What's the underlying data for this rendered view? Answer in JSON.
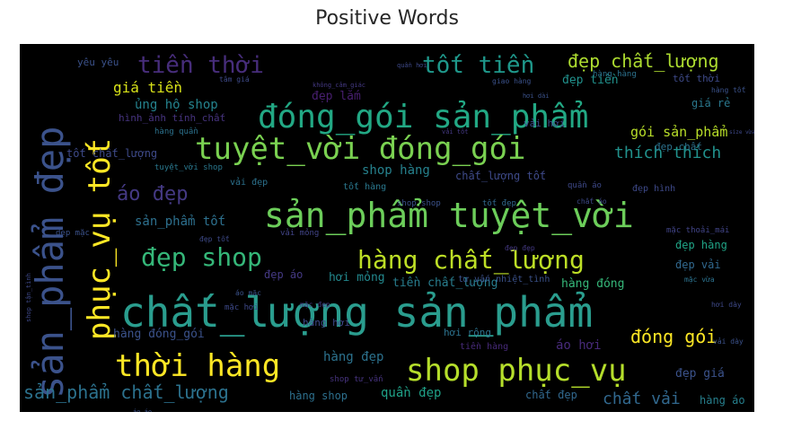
{
  "chart_data": {
    "type": "wordcloud",
    "title": "Positive Words",
    "background": "#000000",
    "palette": "viridis",
    "words": [
      {
        "text": "chất_lượng sản_phẩm",
        "weight": 1.0,
        "color": "#2a9d8e"
      },
      {
        "text": "sản_phẩm tuyệt_vời",
        "weight": 0.82,
        "color": "#6ccd5a"
      },
      {
        "text": "đóng_gói sản_phẩm",
        "weight": 0.76,
        "color": "#22a884"
      },
      {
        "text": "tuyệt_vời đóng_gói",
        "weight": 0.74,
        "color": "#7ad151"
      },
      {
        "text": "sản_phẩm đẹp",
        "weight": 0.7,
        "color": "#3b528b"
      },
      {
        "text": "shop phục_vụ",
        "weight": 0.66,
        "color": "#b5de2b"
      },
      {
        "text": "phục_vụ tốt",
        "weight": 0.64,
        "color": "#fde725"
      },
      {
        "text": "thời hàng",
        "weight": 0.62,
        "color": "#fde725"
      },
      {
        "text": "hàng chất_lượng",
        "weight": 0.55,
        "color": "#bddf26"
      },
      {
        "text": "đẹp shop",
        "weight": 0.52,
        "color": "#35b779"
      },
      {
        "text": "tốt tiền",
        "weight": 0.46,
        "color": "#1f988b"
      },
      {
        "text": "tiền thời",
        "weight": 0.43,
        "color": "#472d7b"
      },
      {
        "text": "đẹp chất_lượng",
        "weight": 0.38,
        "color": "#addc30"
      },
      {
        "text": "sản_phẩm chất_lượng",
        "weight": 0.37,
        "color": "#2c728e"
      },
      {
        "text": "áo đẹp",
        "weight": 0.36,
        "color": "#443983"
      },
      {
        "text": "đóng gói",
        "weight": 0.32,
        "color": "#fde725"
      },
      {
        "text": "thích thích",
        "weight": 0.3,
        "color": "#21918c"
      },
      {
        "text": "chất vải",
        "weight": 0.29,
        "color": "#31688e"
      },
      {
        "text": "giá tiền",
        "weight": 0.27,
        "color": "#d8e219"
      },
      {
        "text": "gói sản_phẩm",
        "weight": 0.25,
        "color": "#b8de29"
      },
      {
        "text": "ủng hộ shop",
        "weight": 0.24,
        "color": "#25838e"
      },
      {
        "text": "hàng đóng_gói",
        "weight": 0.23,
        "color": "#3b528b"
      },
      {
        "text": "sản_phẩm tốt",
        "weight": 0.22,
        "color": "#2d708e"
      },
      {
        "text": "tiền chất_lượng",
        "weight": 0.21,
        "color": "#287d8e"
      },
      {
        "text": "shop hàng",
        "weight": 0.21,
        "color": "#26828e"
      },
      {
        "text": "hàng đẹp",
        "weight": 0.2,
        "color": "#2c728e"
      },
      {
        "text": "quần đẹp",
        "weight": 0.2,
        "color": "#1fa187"
      },
      {
        "text": "hơi mỏng",
        "weight": 0.2,
        "color": "#23898e"
      },
      {
        "text": "tốt chất_lượng",
        "weight": 0.19,
        "color": "#3e4a89"
      },
      {
        "text": "hình_ảnh tính_chất",
        "weight": 0.19,
        "color": "#46337e"
      },
      {
        "text": "đẹp tiền",
        "weight": 0.18,
        "color": "#21918c"
      },
      {
        "text": "giá rẻ",
        "weight": 0.18,
        "color": "#2a788e"
      },
      {
        "text": "vải hơi",
        "weight": 0.17,
        "color": "#3e4989"
      },
      {
        "text": "đẹp chất",
        "weight": 0.16,
        "color": "#2c728e"
      },
      {
        "text": "áo hơi",
        "weight": 0.16,
        "color": "#472a7a"
      },
      {
        "text": "hàng đóng",
        "weight": 0.16,
        "color": "#35b779"
      },
      {
        "text": "hàng shop",
        "weight": 0.16,
        "color": "#2d708e"
      },
      {
        "text": "đẹp hàng",
        "weight": 0.15,
        "color": "#20a486"
      },
      {
        "text": "đẹp vải",
        "weight": 0.15,
        "color": "#31688e"
      },
      {
        "text": "đẹp giá",
        "weight": 0.15,
        "color": "#3b528b"
      },
      {
        "text": "chất đẹp",
        "weight": 0.14,
        "color": "#31688e"
      },
      {
        "text": "hàng áo",
        "weight": 0.14,
        "color": "#27808e"
      },
      {
        "text": "chất_lượng tốt",
        "weight": 0.14,
        "color": "#3e4a89"
      },
      {
        "text": "tốt hàng",
        "weight": 0.13,
        "color": "#2a788e"
      },
      {
        "text": "đẹp lắm",
        "weight": 0.13,
        "color": "#481f70"
      },
      {
        "text": "hàng hơi",
        "weight": 0.13,
        "color": "#3e4989"
      },
      {
        "text": "đẹp áo",
        "weight": 0.13,
        "color": "#443983"
      },
      {
        "text": "vải đẹp",
        "weight": 0.12,
        "color": "#2c728e"
      },
      {
        "text": "yêu yêu",
        "weight": 0.12,
        "color": "#3b528b"
      },
      {
        "text": "tốt thời",
        "weight": 0.12,
        "color": "#3e4a89"
      },
      {
        "text": "đẹp hình",
        "weight": 0.11,
        "color": "#3e4989"
      },
      {
        "text": "hàng quần",
        "weight": 0.11,
        "color": "#2c728e"
      },
      {
        "text": "tuyệt_vời shop",
        "weight": 0.11,
        "color": "#2a788e"
      },
      {
        "text": "tiền hàng",
        "weight": 0.1,
        "color": "#472a7a"
      },
      {
        "text": "hơi rộng",
        "weight": 0.1,
        "color": "#2c728e"
      },
      {
        "text": "vải mỏng",
        "weight": 0.1,
        "color": "#414487"
      },
      {
        "text": "tư_vấn nhiệt_tình",
        "weight": 0.1,
        "color": "#3b528b"
      },
      {
        "text": "mặc thoải_mái",
        "weight": 0.09,
        "color": "#414487"
      },
      {
        "text": "shop tư_vấn",
        "weight": 0.09,
        "color": "#46337e"
      },
      {
        "text": "đóng_gói cẩn_thận",
        "weight": 0.09,
        "color": "#3b528b"
      },
      {
        "text": "hàng hàng",
        "weight": 0.08,
        "color": "#2c728e"
      },
      {
        "text": "đẹp mặc",
        "weight": 0.08,
        "color": "#3b528b"
      },
      {
        "text": "tâm giá",
        "weight": 0.08,
        "color": "#3e4a89"
      },
      {
        "text": "mặc hơi",
        "weight": 0.08,
        "color": "#3e4989"
      },
      {
        "text": "mặc đẹp",
        "weight": 0.08,
        "color": "#443983"
      },
      {
        "text": "shop shop",
        "weight": 0.07,
        "color": "#3b528b"
      },
      {
        "text": "mặc vừa",
        "weight": 0.07,
        "color": "#2c728e"
      },
      {
        "text": "quần áo",
        "weight": 0.07,
        "color": "#3e4989"
      },
      {
        "text": "tốt đẹp",
        "weight": 0.07,
        "color": "#31688e"
      },
      {
        "text": "đẹp tốt",
        "weight": 0.07,
        "color": "#3e4a89"
      },
      {
        "text": "áo mặc",
        "weight": 0.07,
        "color": "#3b528b"
      },
      {
        "text": "hàng tốt",
        "weight": 0.06,
        "color": "#3b528b"
      },
      {
        "text": "hơi dày",
        "weight": 0.06,
        "color": "#3e4989"
      },
      {
        "text": "đẹp đẹp",
        "weight": 0.06,
        "color": "#443983"
      },
      {
        "text": "vải dày",
        "weight": 0.06,
        "color": "#3b528b"
      },
      {
        "text": "chất áo",
        "weight": 0.06,
        "color": "#3e4a89"
      },
      {
        "text": "size vừa",
        "weight": 0.06,
        "color": "#3e4989"
      },
      {
        "text": "giao hàng",
        "weight": 0.06,
        "color": "#3b528b"
      },
      {
        "text": "không_cảm_giác",
        "weight": 0.05,
        "color": "#443983"
      },
      {
        "text": "quần hơi",
        "weight": 0.05,
        "color": "#3e4989"
      },
      {
        "text": "hơi dài",
        "weight": 0.05,
        "color": "#3b528b"
      },
      {
        "text": "vải tốt",
        "weight": 0.05,
        "color": "#443983"
      },
      {
        "text": "shop tận_tình",
        "weight": 0.05,
        "color": "#3e4989"
      },
      {
        "text": "áo áo",
        "weight": 0.05,
        "color": "#3b528b"
      }
    ]
  }
}
